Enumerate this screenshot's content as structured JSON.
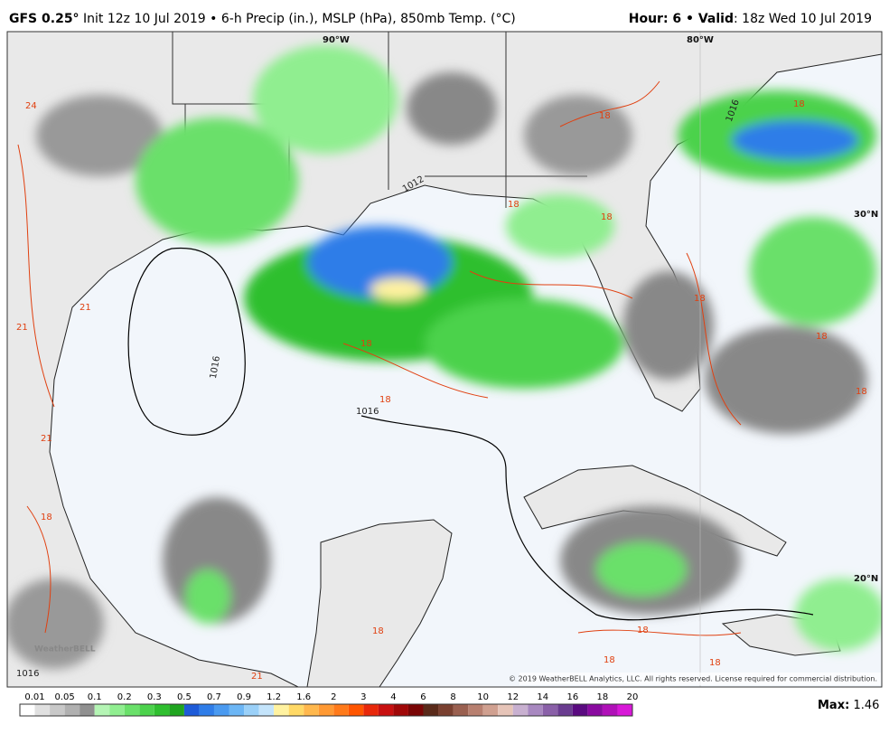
{
  "header": {
    "model": "GFS 0.25°",
    "description": "Init 12z 10 Jul 2019 • 6-h Precip (in.), MSLP (hPa), 850mb Temp. (°C)",
    "hour_valid": "Hour: 6 • Valid",
    "valid_time": ": 18z Wed 10 Jul 2019"
  },
  "map": {
    "grid_labels": [
      "90°W",
      "80°W",
      "30°N",
      "20°N"
    ],
    "isobar_labels": [
      "1016",
      "1016",
      "1012",
      "1016",
      "1016"
    ],
    "isotherm_labels": [
      "24",
      "21",
      "21",
      "21",
      "21",
      "18",
      "18",
      "18",
      "18",
      "18",
      "18",
      "18",
      "18",
      "18",
      "18",
      "18",
      "18",
      "18",
      "18"
    ],
    "logo": "WeatherBELL",
    "copyright": "© 2019 WeatherBELL Analytics, LLC. All rights reserved. License required for commercial distribution."
  },
  "legend": {
    "ticks": [
      0.01,
      0.05,
      0.1,
      0.2,
      0.3,
      0.5,
      0.7,
      0.9,
      1.2,
      1.6,
      2,
      3,
      4,
      6,
      8,
      10,
      12,
      14,
      16,
      18,
      20
    ],
    "colors": [
      "#ffffff",
      "#e0e0e0",
      "#c8c8c8",
      "#b0b0b0",
      "#909090",
      "#b5f5b5",
      "#90ee90",
      "#6ae06a",
      "#4cd24c",
      "#2fbf2f",
      "#1fa51f",
      "#1e5bd8",
      "#2f7de8",
      "#4a9af0",
      "#6cb6f5",
      "#9ad0f8",
      "#c4e4fb",
      "#fff2a0",
      "#ffd966",
      "#ffb84d",
      "#ff9933",
      "#ff7a1a",
      "#ff5500",
      "#e8280a",
      "#c81010",
      "#a00808",
      "#7a0505",
      "#5a2a1a",
      "#7a4030",
      "#9a6050",
      "#b88070",
      "#d0a090",
      "#e6c4b8",
      "#c8b0d0",
      "#a888c0",
      "#8a60a8",
      "#6a3c90",
      "#5a0a80",
      "#8a0aa0",
      "#b010b8",
      "#d818d8"
    ],
    "max_label": "Max:",
    "max_value": 1.46
  }
}
